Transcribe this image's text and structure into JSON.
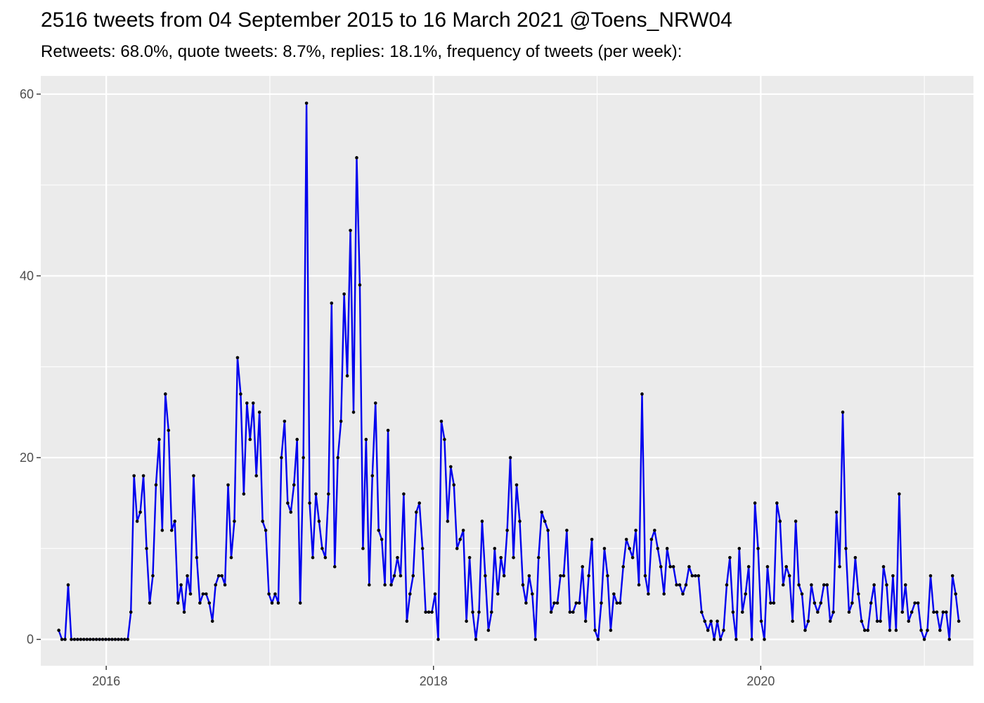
{
  "chart_data": {
    "type": "line",
    "title": "2516 tweets from 04 September 2015 to 16 March 2021 @Toens_NRW04",
    "subtitle": "Retweets: 68.0%, quote tweets: 8.7%, replies: 18.1%, frequency of tweets (per week):",
    "xlabel": "",
    "ylabel": "",
    "xlim": [
      2015.6,
      2021.3
    ],
    "ylim": [
      -2.9,
      62
    ],
    "x_ticks": [
      {
        "value": 2016,
        "label": "2016"
      },
      {
        "value": 2018,
        "label": "2018"
      },
      {
        "value": 2020,
        "label": "2020"
      }
    ],
    "y_ticks": [
      0,
      20,
      40,
      60
    ],
    "grid": true,
    "legend": "none",
    "line_color": "#0000ee",
    "point_color": "#000000",
    "panel_color": "#ebebeb",
    "series": [
      {
        "x_start": 2015.71,
        "x_step": 0.019165,
        "values": [
          1,
          0,
          0,
          6,
          0,
          0,
          0,
          0,
          0,
          0,
          0,
          0,
          0,
          0,
          0,
          0,
          0,
          0,
          0,
          0,
          0,
          0,
          0,
          3,
          18,
          13,
          14,
          18,
          10,
          4,
          7,
          17,
          22,
          12,
          27,
          23,
          12,
          13,
          4,
          6,
          3,
          7,
          5,
          18,
          9,
          4,
          5,
          5,
          4,
          2,
          6,
          7,
          7,
          6,
          17,
          9,
          13,
          31,
          27,
          16,
          26,
          22,
          26,
          18,
          25,
          13,
          12,
          5,
          4,
          5,
          4,
          20,
          24,
          15,
          14,
          17,
          22,
          4,
          20,
          59,
          15,
          9,
          16,
          13,
          10,
          9,
          16,
          37,
          8,
          20,
          24,
          38,
          29,
          45,
          25,
          53,
          39,
          10,
          22,
          6,
          18,
          26,
          12,
          11,
          6,
          23,
          6,
          7,
          9,
          7,
          16,
          2,
          5,
          7,
          14,
          15,
          10,
          3,
          3,
          3,
          5,
          0,
          24,
          22,
          13,
          19,
          17,
          10,
          11,
          12,
          2,
          9,
          3,
          0,
          3,
          13,
          7,
          1,
          3,
          10,
          5,
          9,
          7,
          12,
          20,
          9,
          17,
          13,
          6,
          4,
          7,
          5,
          0,
          9,
          14,
          13,
          12,
          3,
          4,
          4,
          7,
          7,
          12,
          3,
          3,
          4,
          4,
          8,
          2,
          7,
          11,
          1,
          0,
          4,
          10,
          7,
          1,
          5,
          4,
          4,
          8,
          11,
          10,
          9,
          12,
          6,
          27,
          7,
          5,
          11,
          12,
          10,
          8,
          5,
          10,
          8,
          8,
          6,
          6,
          5,
          6,
          8,
          7,
          7,
          7,
          3,
          2,
          1,
          2,
          0,
          2,
          0,
          1,
          6,
          9,
          3,
          0,
          10,
          3,
          5,
          8,
          0,
          15,
          10,
          2,
          0,
          8,
          4,
          4,
          15,
          13,
          6,
          8,
          7,
          2,
          13,
          6,
          5,
          1,
          2,
          6,
          4,
          3,
          4,
          6,
          6,
          2,
          3,
          14,
          8,
          25,
          10,
          3,
          4,
          9,
          5,
          2,
          1,
          1,
          4,
          6,
          2,
          2,
          8,
          6,
          1,
          7,
          1,
          16,
          3,
          6,
          2,
          3,
          4,
          4,
          1,
          0,
          1,
          7,
          3,
          3,
          1,
          3,
          3,
          0,
          7,
          5,
          2
        ]
      }
    ]
  }
}
